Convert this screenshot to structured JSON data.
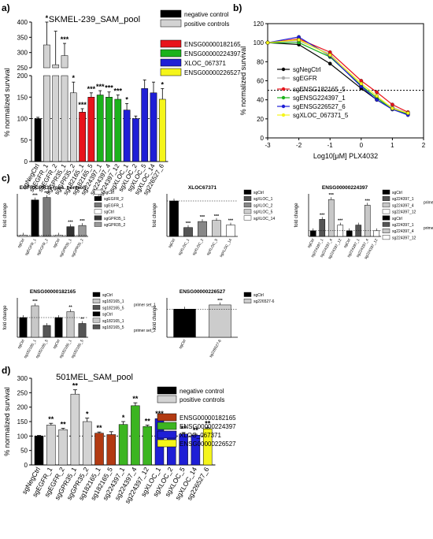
{
  "panels": {
    "a": "a)",
    "b": "b)",
    "c": "c)",
    "d": "d)"
  },
  "chart_data": [
    {
      "id": "a",
      "type": "bar",
      "title": "SKMEL-239_SAM_pool",
      "ylabel": "% normalized survival",
      "categories": [
        "sgNegCtrl",
        "sgEGFR_1",
        "sgEGFR_2",
        "sgGPR35_1",
        "sgGPR35_2",
        "sg182165_1",
        "sg182165_5",
        "sg224397_1",
        "sg224397_4",
        "sg224397_12",
        "sgXLOC_1",
        "sgXLOC_2",
        "sgXLOC_5",
        "sgXLOC_14",
        "sg226527_6"
      ],
      "groups": [
        "neg",
        "pos",
        "pos",
        "pos",
        "pos",
        "red",
        "red",
        "green",
        "green",
        "green",
        "blue",
        "blue",
        "blue",
        "blue",
        "yellow"
      ],
      "values": [
        100,
        325,
        260,
        290,
        160,
        115,
        150,
        155,
        150,
        145,
        120,
        100,
        170,
        160,
        145
      ],
      "errors": [
        3,
        100,
        110,
        40,
        25,
        8,
        10,
        10,
        12,
        10,
        15,
        6,
        20,
        25,
        25
      ],
      "sig": [
        "",
        "*",
        "",
        "***",
        "*",
        "***",
        "***",
        "***",
        "***",
        "***",
        "*",
        "",
        "",
        "",
        "*"
      ],
      "yticks_lower": [
        "0",
        "50",
        "100",
        "150",
        "200"
      ],
      "yticks_upper": [
        "250",
        "300",
        "350",
        "400"
      ],
      "legend": [
        {
          "label": "negative control",
          "color": "#000000"
        },
        {
          "label": "positive controls",
          "color": "#d3d3d3"
        },
        {
          "label": "ENSG00000182165",
          "color": "#e8141b"
        },
        {
          "label": "ENSG00000224397",
          "color": "#1bb21b"
        },
        {
          "label": "XLOC_067371",
          "color": "#1f1fd6"
        },
        {
          "label": "ENSG00000226527",
          "color": "#f5f51a"
        }
      ]
    },
    {
      "id": "b",
      "type": "line",
      "xlabel": "Log10[µM] PLX4032",
      "ylabel": "% normalized survival",
      "xlim": [
        -3,
        2
      ],
      "ylim": [
        0,
        120
      ],
      "xticks": [
        "-3",
        "-2",
        "-1",
        "0",
        "1",
        "2"
      ],
      "yticks": [
        "0",
        "20",
        "40",
        "60",
        "80",
        "100",
        "120"
      ],
      "threshold": 50,
      "x": [
        -3,
        -2,
        -1,
        0,
        0.5,
        1,
        1.5
      ],
      "series": [
        {
          "name": "sgNegCtrl",
          "color": "#000000",
          "values": [
            100,
            98,
            78,
            52,
            40,
            30,
            25
          ]
        },
        {
          "name": "sgEGFR",
          "color": "#aaaaaa",
          "values": [
            100,
            102,
            88,
            55,
            42,
            32,
            26
          ]
        },
        {
          "name": "sgENSG182165_5",
          "color": "#e8141b",
          "values": [
            100,
            104,
            90,
            60,
            48,
            35,
            27
          ]
        },
        {
          "name": "sgENSG224397_1",
          "color": "#1bb21b",
          "values": [
            100,
            100,
            85,
            55,
            42,
            30,
            25
          ]
        },
        {
          "name": "sgENSG226527_6",
          "color": "#1f1fd6",
          "values": [
            100,
            106,
            86,
            54,
            40,
            30,
            24
          ]
        },
        {
          "name": "sgXLOC_067371_5",
          "color": "#f5f51a",
          "values": [
            100,
            103,
            87,
            57,
            44,
            31,
            26
          ]
        }
      ]
    },
    {
      "id": "c1",
      "type": "bar",
      "title": "EGFR/GPR35 (pos. control)",
      "ylabel": "fold change",
      "categories": [
        "sgCtrl",
        "sgEGFR_1",
        "sgEGFR_2",
        "sgCtrl",
        "sgGPR35_1",
        "sgGPR35_2"
      ],
      "values": [
        1,
        30,
        32,
        1,
        8,
        9
      ],
      "sig": [
        "",
        "***",
        "***",
        "",
        "***",
        "***"
      ],
      "legend": [
        "sgCtrl",
        "sgEGFR_2",
        "sgEGFR_1",
        "sgCtrl",
        "sgGPR35_1",
        "sgGPR35_2"
      ]
    },
    {
      "id": "c2",
      "type": "bar",
      "title": "XLOC67371",
      "ylabel": "fold change",
      "categories": [
        "sgCtrl",
        "sgXLOC_1",
        "sgXLOC_2",
        "sgXLOC_5",
        "sgXLOC_14"
      ],
      "values": [
        1.0,
        0.25,
        0.42,
        0.45,
        0.32
      ],
      "sig": [
        "",
        "***",
        "***",
        "***",
        "***"
      ],
      "legend": [
        "sgCtrl",
        "sgXLOC_1",
        "sgXLOC_2",
        "sgXLOC_5",
        "sgXLOC_14"
      ]
    },
    {
      "id": "c3",
      "type": "bar",
      "title": "ENSG00000224397",
      "ylabel": "fold change",
      "categories": [
        "sgCtrl",
        "sg224397_1",
        "sg224397_4",
        "sg224397_12",
        "sgCtrl",
        "sg224397_1",
        "sg224397_4",
        "sg224397_12"
      ],
      "values": [
        1,
        3,
        6.5,
        2,
        1,
        2,
        5.5,
        1
      ],
      "sig": [
        "",
        "***",
        "***",
        "***",
        "",
        "",
        "***",
        ""
      ],
      "legend": [
        "sgCtrl",
        "sg224397_1",
        "sg224397_4",
        "sg224397_12",
        "sgCtrl",
        "sg224397_1",
        "sg224397_4",
        "sg224397_12"
      ],
      "primer_labels": [
        "primer set_1",
        "primer set_2"
      ]
    },
    {
      "id": "c4",
      "type": "bar",
      "title": "ENSG00000182165",
      "ylabel": "fold change",
      "categories": [
        "sgCtrl",
        "sg182165_1",
        "sg182165_5",
        "sgCtrl",
        "sg182165_1",
        "sg182165_5"
      ],
      "values": [
        1,
        1.6,
        0.6,
        1,
        1.3,
        0.7
      ],
      "sig": [
        "",
        "***",
        "",
        "",
        "**",
        "**"
      ],
      "legend": [
        "sgCtrl",
        "sg182165_1",
        "sg182165_5",
        "sgCtrl",
        "sg182165_1",
        "sg182165_5"
      ],
      "primer_labels": [
        "primer set_1",
        "primer set_2"
      ]
    },
    {
      "id": "c5",
      "type": "bar",
      "title": "ENSG00000226527",
      "ylabel": "fold change",
      "categories": [
        "sgCtrl",
        "sg226527-6"
      ],
      "values": [
        1.0,
        1.15
      ],
      "sig": [
        "",
        "***"
      ],
      "legend": [
        "sgCtrl",
        "sg226527-6"
      ]
    },
    {
      "id": "d",
      "type": "bar",
      "title": "501MEL_SAM_pool",
      "ylabel": "% normalized survival",
      "ylim": [
        0,
        300
      ],
      "yticks": [
        "0",
        "50",
        "100",
        "150",
        "200",
        "250",
        "300"
      ],
      "categories": [
        "sgNegCtrl",
        "sgEGFR_1",
        "sgEGFR_2",
        "sgGPR35_1",
        "sgGPR35_2",
        "sg182165_1",
        "sg182165_5",
        "sg224397_1",
        "sg224397_4",
        "sg224397_12",
        "sgXLOC_1",
        "sgXLOC_2",
        "sgXLOC_5",
        "sgXLOC_14",
        "sg226527_6"
      ],
      "groups": [
        "neg",
        "pos",
        "pos",
        "pos",
        "pos",
        "red",
        "red",
        "green",
        "green",
        "green",
        "blue",
        "blue",
        "blue",
        "blue",
        "yellow"
      ],
      "values": [
        100,
        138,
        122,
        245,
        150,
        110,
        105,
        140,
        205,
        133,
        160,
        105,
        107,
        103,
        125
      ],
      "errors": [
        2,
        6,
        5,
        15,
        12,
        4,
        10,
        10,
        10,
        5,
        4,
        6,
        5,
        3,
        4
      ],
      "sig": [
        "",
        "**",
        "**",
        "**",
        "*",
        "**",
        "",
        "*",
        "**",
        "**",
        "***",
        "",
        "**",
        "**",
        "**"
      ],
      "legend": [
        {
          "label": "negative control",
          "color": "#000000"
        },
        {
          "label": "positive controls",
          "color": "#d3d3d3"
        },
        {
          "label": "ENSG00000182165",
          "color": "#b23a12"
        },
        {
          "label": "ENSG00000224397",
          "color": "#3cb521"
        },
        {
          "label": "XLOC_067371",
          "color": "#1f1fd6"
        },
        {
          "label": "ENSG00000226527",
          "color": "#f5f51a"
        }
      ]
    }
  ]
}
